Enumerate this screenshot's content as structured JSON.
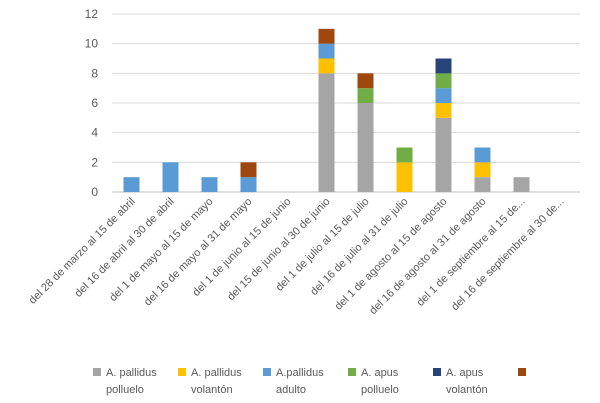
{
  "chart_data": {
    "type": "bar",
    "stacked": true,
    "categories": [
      "del 28 de marzo al 15 de abril",
      "del 16 de abril al 30 de abril",
      "del 1 de mayo al 15 de mayo",
      "del 16 de mayo al 31 de mayo",
      "del 1 de junio al 15 de junio",
      "del 15 de junio al 30 de junio",
      "del 1 de julio al 15 de julio",
      "del 16 de julio al 31 de julio",
      "del 1 de agosto al 15 de agosto",
      "del 16 de agosto al 31 de agosto",
      "del 1 de septiembre al 15 de...",
      "del 16 de septiembre al 30 de..."
    ],
    "series": [
      {
        "name": "A. pallidus polluelo",
        "legend_lines": [
          "A. pallidus",
          "polluelo"
        ],
        "color": "#a5a5a5",
        "values": [
          0,
          0,
          0,
          0,
          0,
          8,
          6,
          0,
          5,
          1,
          1,
          0
        ]
      },
      {
        "name": "A. pallidus volantón",
        "legend_lines": [
          "A. pallidus",
          "volantón"
        ],
        "color": "#ffc000",
        "values": [
          0,
          0,
          0,
          0,
          0,
          1,
          0,
          2,
          1,
          1,
          0,
          0
        ]
      },
      {
        "name": "A.pallidus adulto",
        "legend_lines": [
          "A.pallidus",
          "adulto"
        ],
        "color": "#5b9bd5",
        "values": [
          1,
          2,
          1,
          1,
          0,
          1,
          0,
          0,
          1,
          1,
          0,
          0
        ]
      },
      {
        "name": "A. apus polluelo",
        "legend_lines": [
          "A. apus",
          "polluelo"
        ],
        "color": "#70ad47",
        "values": [
          0,
          0,
          0,
          0,
          0,
          0,
          1,
          1,
          1,
          0,
          0,
          0
        ]
      },
      {
        "name": "A. apus volantón",
        "legend_lines": [
          "A. apus",
          "volantón"
        ],
        "color": "#264478",
        "values": [
          0,
          0,
          0,
          0,
          0,
          0,
          0,
          0,
          1,
          0,
          0,
          0
        ]
      },
      {
        "name": "",
        "legend_lines": [],
        "color": "#9e480e",
        "values": [
          0,
          0,
          0,
          1,
          0,
          1,
          1,
          0,
          0,
          0,
          0,
          0
        ]
      }
    ],
    "ylim": [
      0,
      12
    ],
    "yticks": [
      0,
      2,
      4,
      6,
      8,
      10,
      12
    ],
    "grid": true,
    "legend": "bottom",
    "title": "",
    "xlabel": "",
    "ylabel": ""
  }
}
